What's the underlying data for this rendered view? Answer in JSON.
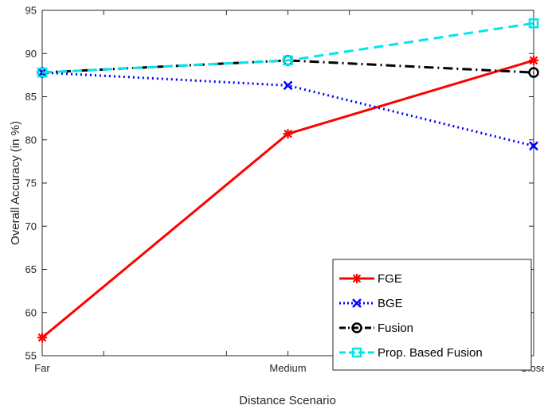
{
  "chart_data": {
    "type": "line",
    "xlabel": "Distance Scenario",
    "ylabel": "Overall Accuracy (in %)",
    "categories": [
      "Far",
      "Medium",
      "Close"
    ],
    "ylim": [
      55,
      95
    ],
    "yticks": [
      55,
      60,
      65,
      70,
      75,
      80,
      85,
      90,
      95
    ],
    "grid": false,
    "legend_position": "bottom-right",
    "series": [
      {
        "name": "FGE",
        "values": [
          57.1,
          80.7,
          89.2
        ],
        "color": "#ff0000",
        "line_style": "solid",
        "marker": "asterisk"
      },
      {
        "name": "BGE",
        "values": [
          87.8,
          86.3,
          79.3
        ],
        "color": "#0000ff",
        "line_style": "dotted",
        "marker": "x"
      },
      {
        "name": "Fusion",
        "values": [
          87.8,
          89.2,
          87.8
        ],
        "color": "#000000",
        "line_style": "dash-dot",
        "marker": "circle"
      },
      {
        "name": "Prop. Based Fusion",
        "values": [
          87.8,
          89.2,
          93.5
        ],
        "color": "#00e5ee",
        "line_style": "dashed",
        "marker": "square"
      }
    ]
  }
}
